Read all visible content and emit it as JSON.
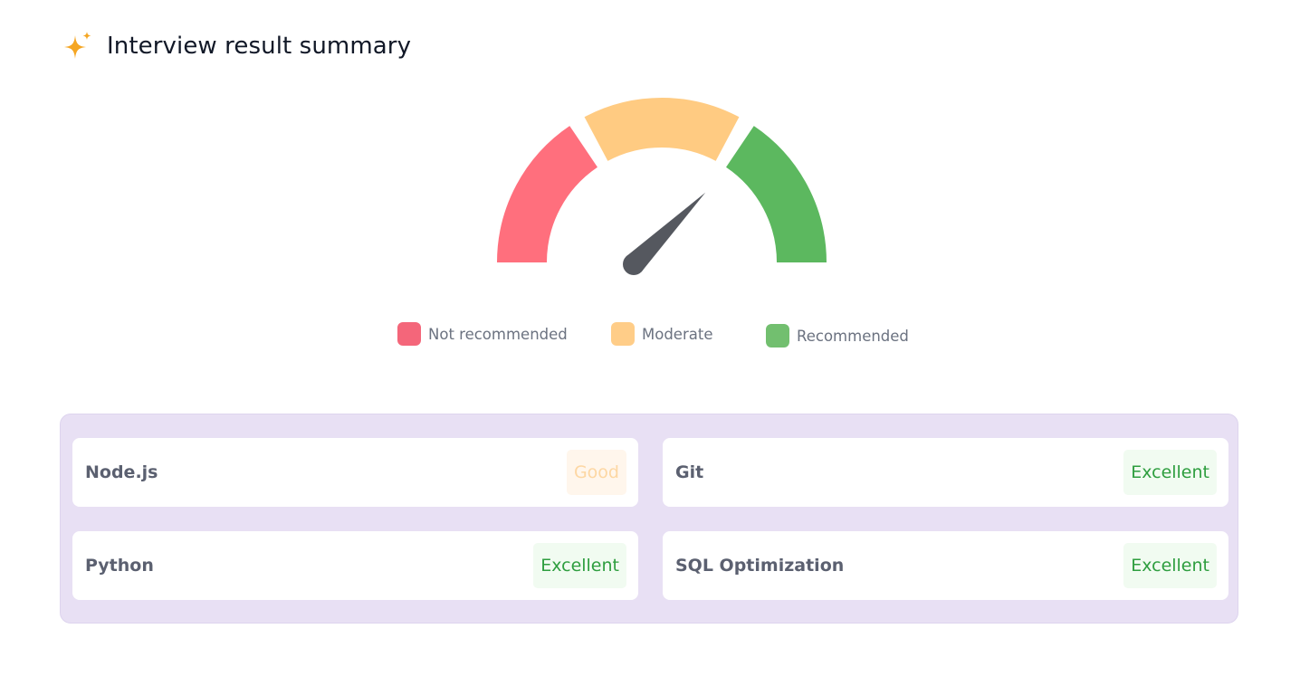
{
  "header": {
    "title": "Interview result summary",
    "icon": "sparkle-icon",
    "icon_color": "#f5a623"
  },
  "gauge": {
    "segments": [
      {
        "name": "Not recommended",
        "color": "#ff6f7d"
      },
      {
        "name": "Moderate",
        "color": "#ffcb82"
      },
      {
        "name": "Recommended",
        "color": "#5cb85f"
      }
    ],
    "needle_color": "#55585f",
    "needle_level": 0.75
  },
  "legend": [
    {
      "label": "Not recommended",
      "color": "#f4667a"
    },
    {
      "label": "Moderate",
      "color": "#ffcd88"
    },
    {
      "label": "Recommended",
      "color": "#72bf6f"
    }
  ],
  "skills": [
    {
      "name": "Node.js",
      "rating": "Good"
    },
    {
      "name": "Git",
      "rating": "Excellent"
    },
    {
      "name": "Python",
      "rating": "Excellent"
    },
    {
      "name": "SQL Optimization",
      "rating": "Excellent"
    }
  ]
}
